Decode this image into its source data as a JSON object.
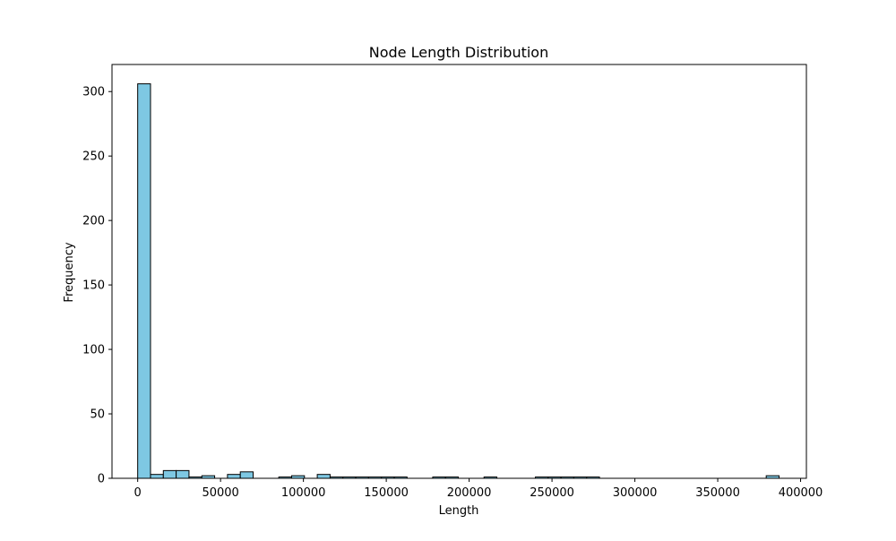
{
  "chart_data": {
    "type": "bar",
    "title": "Node Length Distribution",
    "xlabel": "Length",
    "ylabel": "Frequency",
    "xlim": [
      -15500,
      403500
    ],
    "ylim": [
      0,
      321
    ],
    "bin_start": 0,
    "bin_width": 7740,
    "counts": [
      306,
      3,
      6,
      6,
      1,
      2,
      0,
      3,
      5,
      0,
      0,
      1,
      2,
      0,
      3,
      1,
      1,
      1,
      1,
      1,
      1,
      0,
      0,
      1,
      1,
      0,
      0,
      1,
      0,
      0,
      0,
      1,
      1,
      1,
      1,
      1,
      0,
      0,
      0,
      0,
      0,
      0,
      0,
      0,
      0,
      0,
      0,
      0,
      0,
      2
    ],
    "xticks": [
      0,
      50000,
      100000,
      150000,
      200000,
      250000,
      300000,
      350000,
      400000
    ],
    "yticks": [
      0,
      50,
      100,
      150,
      200,
      250,
      300
    ],
    "bar_color": "#7ec8e3",
    "edge_color": "#000000",
    "grid": false
  }
}
